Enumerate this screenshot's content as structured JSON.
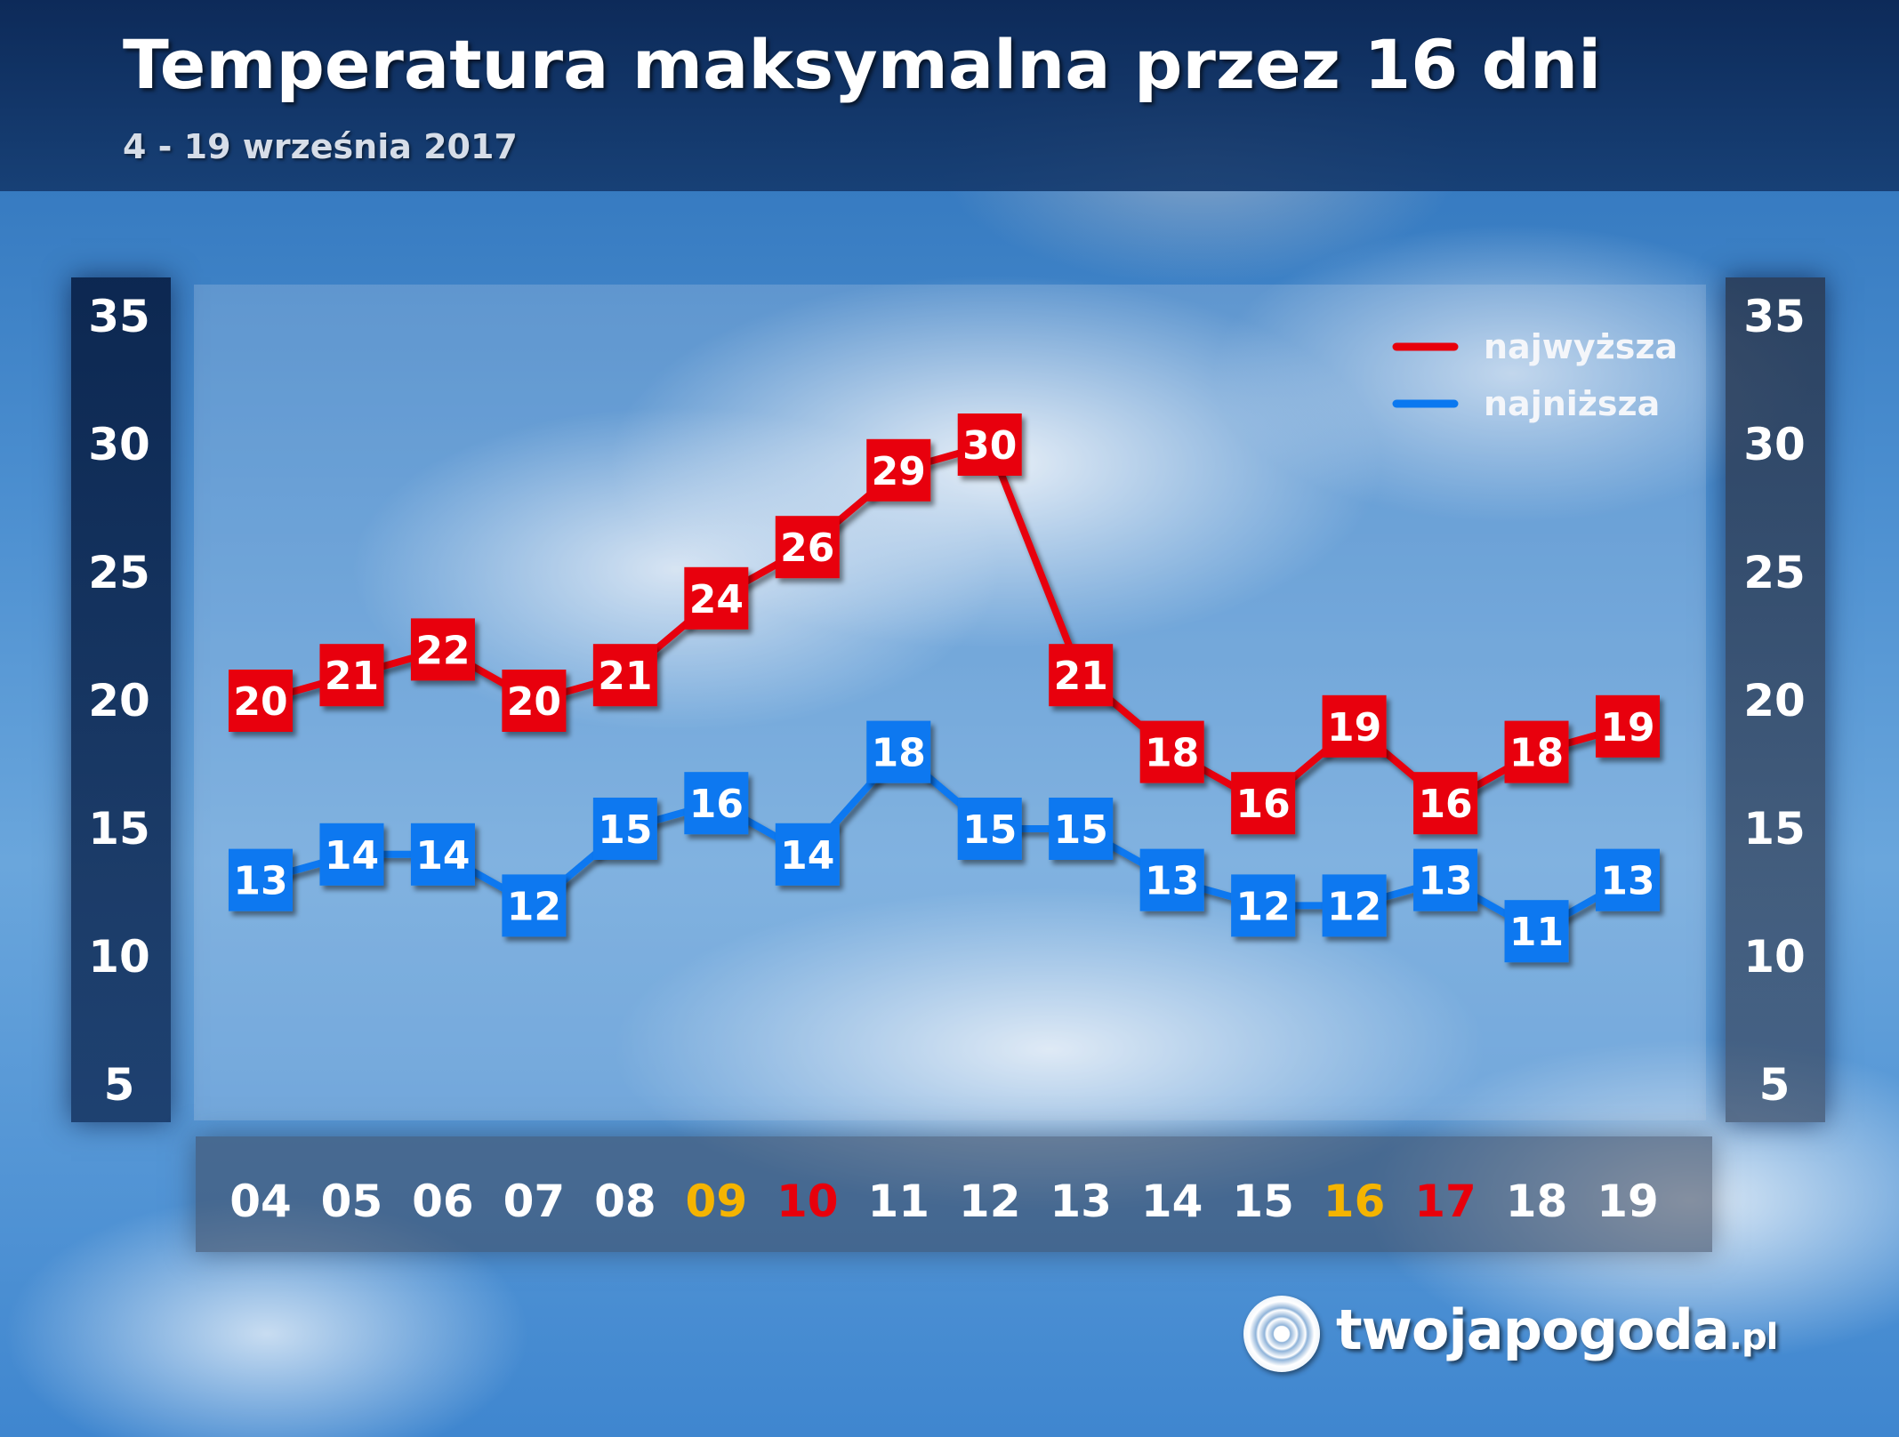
{
  "header": {
    "title": "Temperatura maksymalna przez 16 dni",
    "subtitle": "4 - 19 września 2017"
  },
  "logo": {
    "name": "twojapogoda",
    "tld": ".pl"
  },
  "colors": {
    "high": "#e8000b",
    "low": "#0a78f0",
    "weekend_saturday": "#f5b400",
    "weekend_sunday": "#e8000b",
    "date_default": "#ffffff"
  },
  "chart_data": {
    "type": "line",
    "title": "Temperatura maksymalna przez 16 dni",
    "subtitle": "4 - 19 września 2017",
    "categories": [
      "04",
      "05",
      "06",
      "07",
      "08",
      "09",
      "10",
      "11",
      "12",
      "13",
      "14",
      "15",
      "16",
      "17",
      "18",
      "19"
    ],
    "category_highlight": [
      "default",
      "default",
      "default",
      "default",
      "default",
      "saturday",
      "sunday",
      "default",
      "default",
      "default",
      "default",
      "default",
      "saturday",
      "sunday",
      "default",
      "default"
    ],
    "series": [
      {
        "name": "najwyższa",
        "color": "#e8000b",
        "values": [
          20,
          21,
          22,
          20,
          21,
          24,
          26,
          29,
          30,
          21,
          18,
          16,
          19,
          16,
          18,
          19
        ]
      },
      {
        "name": "najniższa",
        "color": "#0a78f0",
        "values": [
          13,
          14,
          14,
          12,
          15,
          16,
          14,
          18,
          15,
          15,
          13,
          12,
          12,
          13,
          11,
          13
        ]
      }
    ],
    "ylim": [
      5,
      35
    ],
    "yticks": [
      5,
      10,
      15,
      20,
      25,
      30,
      35
    ],
    "y_axis_both_sides": true,
    "grid": false,
    "legend_position": "top-right"
  }
}
